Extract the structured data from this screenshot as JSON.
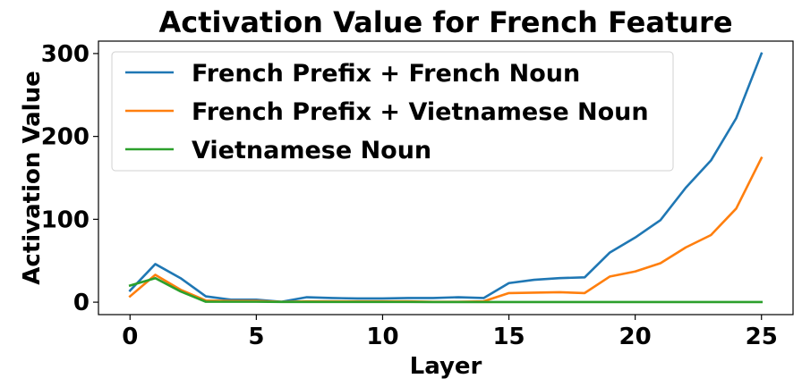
{
  "chart_data": {
    "type": "line",
    "title": "Activation Value for French Feature",
    "xlabel": "Layer",
    "ylabel": "Activation Value",
    "xlim": [
      -1.25,
      26.25
    ],
    "ylim": [
      -15,
      315
    ],
    "xticks": [
      0,
      5,
      10,
      15,
      20,
      25
    ],
    "yticks": [
      0,
      100,
      200,
      300
    ],
    "grid": false,
    "legend_position": "top-left",
    "x": [
      0,
      1,
      2,
      3,
      4,
      5,
      6,
      7,
      8,
      9,
      10,
      11,
      12,
      13,
      14,
      15,
      16,
      17,
      18,
      19,
      20,
      21,
      22,
      23,
      24,
      25
    ],
    "series": [
      {
        "name": "French Prefix + French Noun",
        "color": "#1f77b4",
        "values": [
          14,
          46,
          29,
          7,
          3,
          3,
          0.5,
          6,
          5,
          4.5,
          4.5,
          5,
          5,
          6,
          5,
          23,
          27,
          29,
          30,
          60,
          78,
          99,
          138,
          171,
          222,
          300
        ]
      },
      {
        "name": "French Prefix + Vietnamese Noun",
        "color": "#ff7f0e",
        "values": [
          7,
          33,
          15,
          2,
          1.5,
          1.5,
          0.5,
          1,
          1,
          1,
          1,
          1,
          0.5,
          0.5,
          1,
          11,
          11.5,
          12,
          11,
          31,
          37,
          47,
          66,
          81,
          113,
          174
        ]
      },
      {
        "name": "Vietnamese Noun",
        "color": "#2ca02c",
        "values": [
          20,
          29,
          13,
          0.5,
          0.5,
          0.5,
          0.3,
          0.3,
          0.3,
          0.3,
          0.3,
          0.3,
          0.2,
          0.2,
          0.2,
          0.2,
          0.2,
          0.2,
          0.2,
          0.2,
          0.2,
          0.2,
          0.2,
          0.2,
          0.2,
          0.2
        ]
      }
    ]
  }
}
